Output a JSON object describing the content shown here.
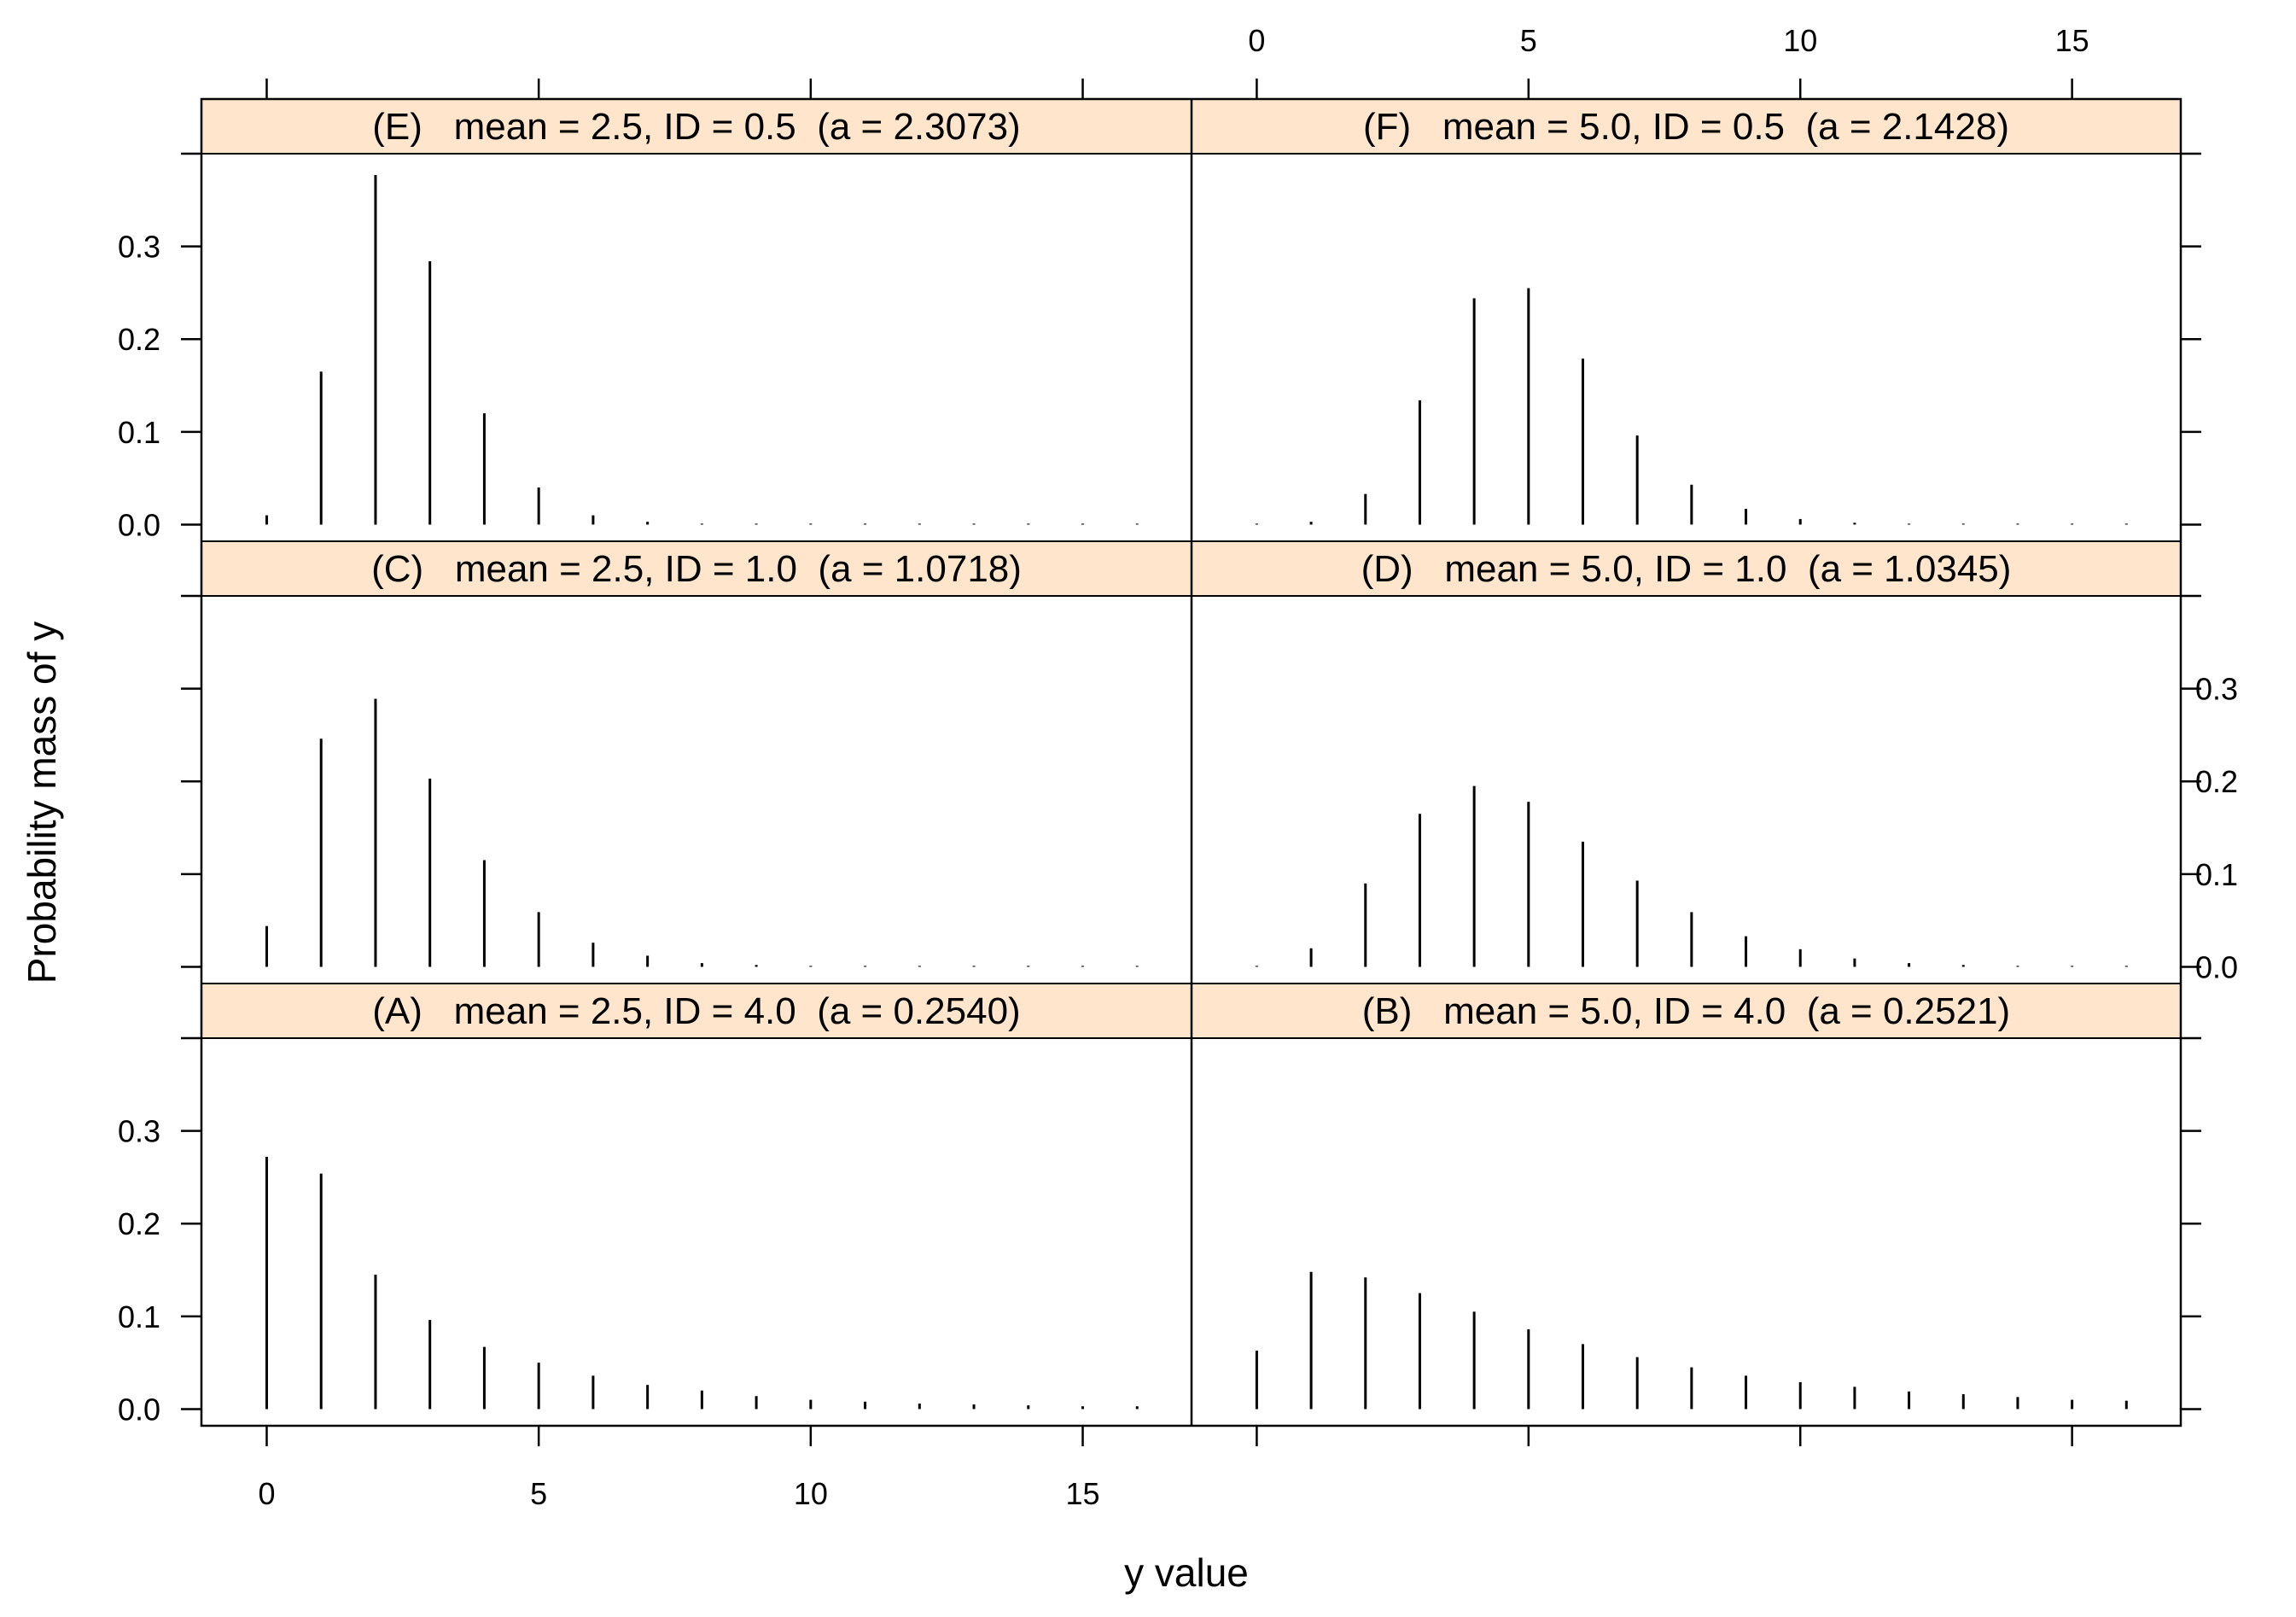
{
  "chart_data": {
    "type": "bar",
    "style": "lattice-xyplot-spikes",
    "xlabel": "y value",
    "ylabel": "Probability mass of y",
    "xlim": [
      -1.2,
      17
    ],
    "ylim": [
      -0.018,
      0.4
    ],
    "x_ticks": [
      0,
      5,
      10,
      15
    ],
    "y_ticks": [
      0.0,
      0.1,
      0.2,
      0.3
    ],
    "x_tick_labels": [
      "0",
      "5",
      "10",
      "15"
    ],
    "y_tick_labels": [
      "0.0",
      "0.1",
      "0.2",
      "0.3"
    ],
    "strip_color": "#ffe5cc",
    "x": [
      0,
      1,
      2,
      3,
      4,
      5,
      6,
      7,
      8,
      9,
      10,
      11,
      12,
      13,
      14,
      15,
      16
    ],
    "panels": [
      {
        "id": "E",
        "label": "(E)   mean = 2.5, ID = 0.5  (a = 2.3073)",
        "row": 0,
        "col": 0,
        "values": [
          0.01,
          0.165,
          0.377,
          0.284,
          0.12,
          0.04,
          0.01,
          0.003,
          0.001,
          0.001,
          0.001,
          0.001,
          0.001,
          0.001,
          0.001,
          0.001,
          0.001
        ]
      },
      {
        "id": "F",
        "label": "(F)   mean = 5.0, ID = 0.5  (a = 2.1428)",
        "row": 0,
        "col": 1,
        "values": [
          0.001,
          0.003,
          0.033,
          0.134,
          0.244,
          0.255,
          0.179,
          0.096,
          0.043,
          0.017,
          0.006,
          0.002,
          0.001,
          0.001,
          0.001,
          0.001,
          0.001
        ]
      },
      {
        "id": "C",
        "label": "(C)   mean = 2.5, ID = 1.0  (a = 1.0718)",
        "row": 1,
        "col": 0,
        "values": [
          0.044,
          0.246,
          0.289,
          0.203,
          0.115,
          0.059,
          0.026,
          0.012,
          0.004,
          0.002,
          0.001,
          0.001,
          0.001,
          0.001,
          0.001,
          0.001,
          0.001
        ]
      },
      {
        "id": "D",
        "label": "(D)   mean = 5.0, ID = 1.0  (a = 1.0345)",
        "row": 1,
        "col": 1,
        "values": [
          0.001,
          0.02,
          0.09,
          0.165,
          0.195,
          0.178,
          0.135,
          0.093,
          0.059,
          0.033,
          0.019,
          0.009,
          0.004,
          0.002,
          0.001,
          0.001,
          0.001
        ]
      },
      {
        "id": "A",
        "label": "(A)   mean = 2.5, ID = 4.0  (a = 0.2540)",
        "row": 2,
        "col": 0,
        "values": [
          0.272,
          0.254,
          0.145,
          0.096,
          0.067,
          0.05,
          0.036,
          0.026,
          0.02,
          0.014,
          0.01,
          0.008,
          0.006,
          0.005,
          0.004,
          0.003,
          0.003
        ]
      },
      {
        "id": "B",
        "label": "(B)   mean = 5.0, ID = 4.0  (a = 0.2521)",
        "row": 2,
        "col": 1,
        "values": [
          0.063,
          0.148,
          0.142,
          0.125,
          0.105,
          0.086,
          0.07,
          0.056,
          0.045,
          0.036,
          0.029,
          0.024,
          0.019,
          0.016,
          0.013,
          0.01,
          0.009
        ]
      }
    ],
    "x_axis_labels_shown": {
      "bottom": [
        0
      ],
      "top": [
        1
      ]
    },
    "y_axis_labels_shown": {
      "left": [
        0,
        2
      ],
      "right": [
        1
      ]
    }
  }
}
